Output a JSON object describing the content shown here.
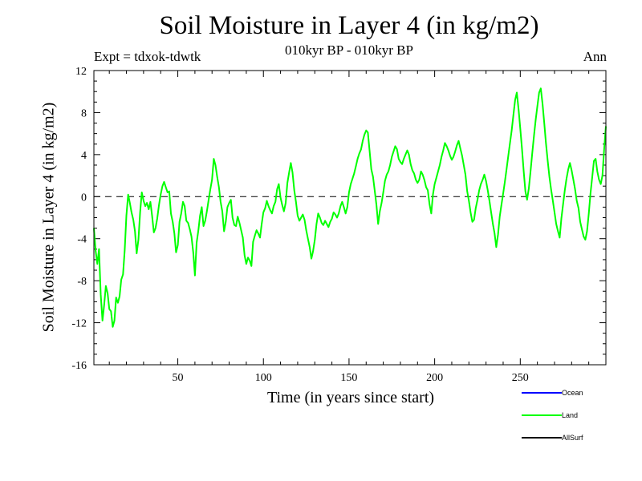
{
  "chart_data": {
    "type": "line",
    "title": "Soil Moisture in Layer 4 (in kg/m2)",
    "subtitle": "010kyr BP - 010kyr BP",
    "experiment_label": "Expt = tdxok-tdwtk",
    "period_label": "Ann",
    "xlabel": "Time (in years since start)",
    "ylabel": "Soil Moisture in Layer 4 (in kg/m2)",
    "xlim": [
      1,
      300
    ],
    "ylim": [
      -16,
      12
    ],
    "x_ticks": [
      50,
      100,
      150,
      200,
      250
    ],
    "y_ticks": [
      12,
      8,
      4,
      0,
      -4,
      -8,
      -12,
      -16
    ],
    "zero_line": "dashed",
    "legend_position": "bottom-right",
    "series": [
      {
        "name": "Ocean",
        "color": "#0000ff",
        "values": []
      },
      {
        "name": "Land",
        "color": "#00ff00",
        "x_start": 1,
        "x_step": 1,
        "values": [
          -3.0,
          -5.1,
          -6.4,
          -5.0,
          -9.3,
          -11.8,
          -10.3,
          -8.5,
          -9.2,
          -10.7,
          -10.9,
          -12.4,
          -11.8,
          -9.6,
          -10.1,
          -9.5,
          -7.9,
          -7.4,
          -5.1,
          -1.8,
          0.2,
          -0.6,
          -1.5,
          -2.2,
          -3.3,
          -5.4,
          -4.1,
          -1.5,
          0.4,
          -0.4,
          -0.9,
          -0.6,
          -1.2,
          -0.5,
          -1.8,
          -3.4,
          -3.0,
          -2.1,
          -0.8,
          0.2,
          1.0,
          1.4,
          0.9,
          0.4,
          0.5,
          -1.6,
          -2.4,
          -3.5,
          -5.3,
          -4.6,
          -2.4,
          -1.6,
          -0.5,
          -0.9,
          -2.3,
          -2.5,
          -3.1,
          -3.8,
          -5.3,
          -7.5,
          -4.4,
          -3.2,
          -1.8,
          -1.0,
          -2.8,
          -2.3,
          -1.4,
          -0.3,
          0.7,
          1.6,
          3.6,
          3.0,
          1.9,
          0.9,
          -0.5,
          -1.4,
          -3.3,
          -2.4,
          -1.0,
          -0.6,
          -0.3,
          -2.0,
          -2.7,
          -2.8,
          -1.9,
          -2.5,
          -3.2,
          -3.9,
          -5.6,
          -6.4,
          -5.8,
          -6.1,
          -6.6,
          -4.3,
          -3.7,
          -3.2,
          -3.5,
          -3.9,
          -2.6,
          -1.5,
          -1.1,
          -0.4,
          -0.9,
          -1.3,
          -1.6,
          -0.9,
          -0.5,
          0.7,
          1.2,
          -0.1,
          -0.8,
          -1.4,
          -0.6,
          1.3,
          2.3,
          3.2,
          2.3,
          0.6,
          -0.5,
          -1.8,
          -2.3,
          -2.0,
          -1.7,
          -2.2,
          -3.2,
          -4.0,
          -4.8,
          -5.9,
          -5.2,
          -4.1,
          -2.6,
          -1.6,
          -2.0,
          -2.5,
          -2.7,
          -2.3,
          -2.6,
          -2.9,
          -2.4,
          -2.1,
          -1.5,
          -1.7,
          -2.0,
          -1.6,
          -0.9,
          -0.5,
          -1.0,
          -1.6,
          -1.0,
          0.4,
          1.2,
          1.7,
          2.2,
          2.9,
          3.6,
          4.1,
          4.5,
          5.3,
          5.9,
          6.3,
          6.1,
          4.4,
          2.6,
          1.9,
          0.6,
          -0.8,
          -2.6,
          -1.4,
          -0.6,
          0.4,
          1.5,
          2.1,
          2.4,
          3.0,
          3.8,
          4.3,
          4.8,
          4.5,
          3.6,
          3.3,
          3.1,
          3.6,
          4.0,
          4.4,
          4.0,
          3.1,
          2.5,
          2.2,
          1.6,
          1.3,
          1.6,
          2.4,
          2.1,
          1.6,
          0.9,
          0.6,
          -0.7,
          -1.6,
          0.2,
          1.2,
          1.8,
          2.4,
          3.0,
          3.8,
          4.4,
          5.1,
          4.8,
          4.4,
          3.9,
          3.5,
          3.8,
          4.3,
          4.9,
          5.3,
          4.6,
          3.9,
          3.0,
          2.1,
          0.5,
          -0.4,
          -1.5,
          -2.4,
          -2.2,
          -1.1,
          -0.3,
          0.6,
          1.2,
          1.6,
          2.1,
          1.5,
          0.6,
          -0.4,
          -1.5,
          -2.6,
          -3.5,
          -4.8,
          -3.6,
          -1.9,
          -0.8,
          0.3,
          1.4,
          2.6,
          3.9,
          5.1,
          6.3,
          7.8,
          9.2,
          9.9,
          8.3,
          6.5,
          4.6,
          2.4,
          0.5,
          -0.3,
          0.8,
          2.4,
          4.1,
          5.8,
          7.3,
          8.6,
          9.9,
          10.3,
          8.8,
          7.0,
          5.1,
          3.4,
          1.9,
          0.7,
          -0.4,
          -1.5,
          -2.6,
          -3.3,
          -3.9,
          -2.1,
          -0.7,
          0.6,
          1.7,
          2.6,
          3.2,
          2.5,
          1.6,
          0.7,
          -0.4,
          -1.1,
          -2.4,
          -3.1,
          -3.8,
          -4.1,
          -3.3,
          -1.6,
          0.3,
          1.8,
          3.4,
          3.6,
          2.4,
          1.6,
          1.2,
          2.0,
          4.6,
          6.7
        ]
      },
      {
        "name": "AllSurf",
        "color": "#000000",
        "values": []
      }
    ]
  }
}
